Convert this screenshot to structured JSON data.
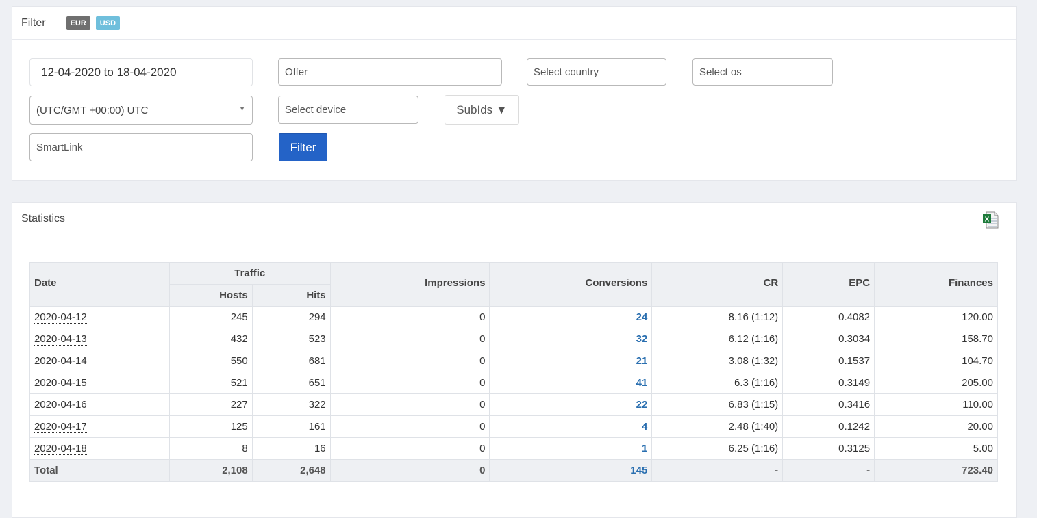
{
  "filter": {
    "title": "Filter",
    "currencies": [
      "EUR",
      "USD"
    ],
    "date_range": "12-04-2020 to 18-04-2020",
    "offer_placeholder": "Offer",
    "country_placeholder": "Select country",
    "os_placeholder": "Select os",
    "timezone": "(UTC/GMT +00:00) UTC",
    "device_placeholder": "Select device",
    "subids_label": "SubIds ▼",
    "smartlink_placeholder": "SmartLink",
    "filter_button": "Filter"
  },
  "statistics": {
    "title": "Statistics",
    "export_icon": "excel-export-icon",
    "headers": {
      "date": "Date",
      "traffic": "Traffic",
      "hosts": "Hosts",
      "hits": "Hits",
      "impressions": "Impressions",
      "conversions": "Conversions",
      "cr": "CR",
      "epc": "EPC",
      "finances": "Finances"
    },
    "rows": [
      {
        "date": "2020-04-12",
        "hosts": "245",
        "hits": "294",
        "impressions": "0",
        "conversions": "24",
        "cr": "8.16 (1:12)",
        "epc": "0.4082",
        "finances": "120.00"
      },
      {
        "date": "2020-04-13",
        "hosts": "432",
        "hits": "523",
        "impressions": "0",
        "conversions": "32",
        "cr": "6.12 (1:16)",
        "epc": "0.3034",
        "finances": "158.70"
      },
      {
        "date": "2020-04-14",
        "hosts": "550",
        "hits": "681",
        "impressions": "0",
        "conversions": "21",
        "cr": "3.08 (1:32)",
        "epc": "0.1537",
        "finances": "104.70"
      },
      {
        "date": "2020-04-15",
        "hosts": "521",
        "hits": "651",
        "impressions": "0",
        "conversions": "41",
        "cr": "6.3 (1:16)",
        "epc": "0.3149",
        "finances": "205.00"
      },
      {
        "date": "2020-04-16",
        "hosts": "227",
        "hits": "322",
        "impressions": "0",
        "conversions": "22",
        "cr": "6.83 (1:15)",
        "epc": "0.3416",
        "finances": "110.00"
      },
      {
        "date": "2020-04-17",
        "hosts": "125",
        "hits": "161",
        "impressions": "0",
        "conversions": "4",
        "cr": "2.48 (1:40)",
        "epc": "0.1242",
        "finances": "20.00"
      },
      {
        "date": "2020-04-18",
        "hosts": "8",
        "hits": "16",
        "impressions": "0",
        "conversions": "1",
        "cr": "6.25 (1:16)",
        "epc": "0.3125",
        "finances": "5.00"
      }
    ],
    "total": {
      "label": "Total",
      "hosts": "2,108",
      "hits": "2,648",
      "impressions": "0",
      "conversions": "145",
      "cr": "-",
      "epc": "-",
      "finances": "723.40"
    }
  },
  "colors": {
    "accent": "#2463c7",
    "link": "#2a6fb0",
    "badge_eur": "#6f6f6f",
    "badge_usd": "#6fbfdc"
  }
}
